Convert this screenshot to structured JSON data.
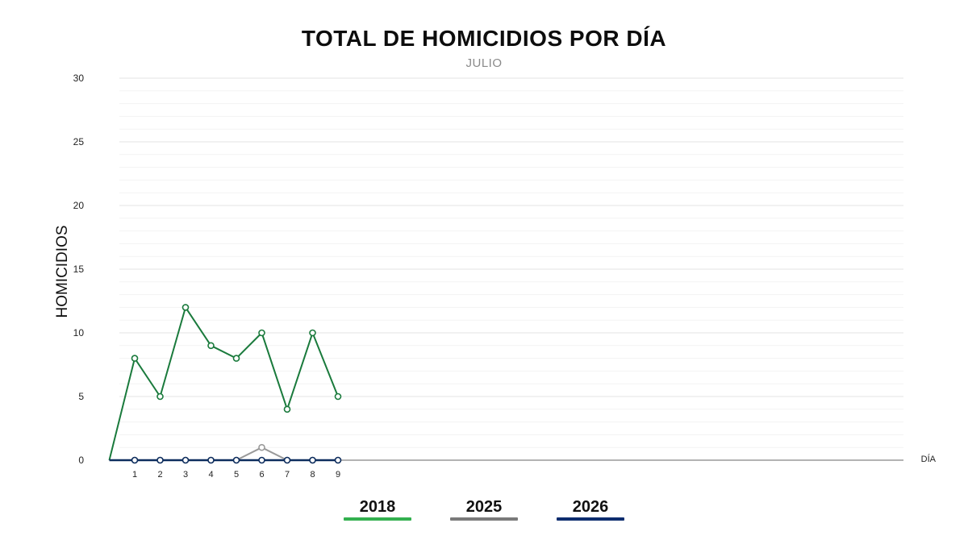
{
  "chart_data": {
    "type": "line",
    "title": "TOTAL DE HOMICIDIOS POR DÍA",
    "subtitle": "JULIO",
    "xlabel": "DÍA",
    "ylabel": "HOMICIDIOS",
    "ylim": [
      0,
      30
    ],
    "yticks": [
      0,
      5,
      10,
      15,
      20,
      25,
      30
    ],
    "xlim": [
      0,
      31
    ],
    "x": [
      1,
      2,
      3,
      4,
      5,
      6,
      7,
      8,
      9
    ],
    "grid": true,
    "legend_position": "bottom",
    "series": [
      {
        "name": "2018",
        "color": "#1a7a3c",
        "legend_color": "#33b04f",
        "values": [
          8,
          5,
          12,
          9,
          8,
          10,
          4,
          10,
          5
        ]
      },
      {
        "name": "2025",
        "color": "#9a9a9a",
        "legend_color": "#7a7a7a",
        "values": [
          0,
          0,
          0,
          0,
          0,
          1,
          0,
          0,
          0
        ]
      },
      {
        "name": "2026",
        "color": "#0d2d5e",
        "legend_color": "#0d2d6e",
        "values": [
          0,
          0,
          0,
          0,
          0,
          0,
          0,
          0,
          0
        ]
      }
    ]
  }
}
